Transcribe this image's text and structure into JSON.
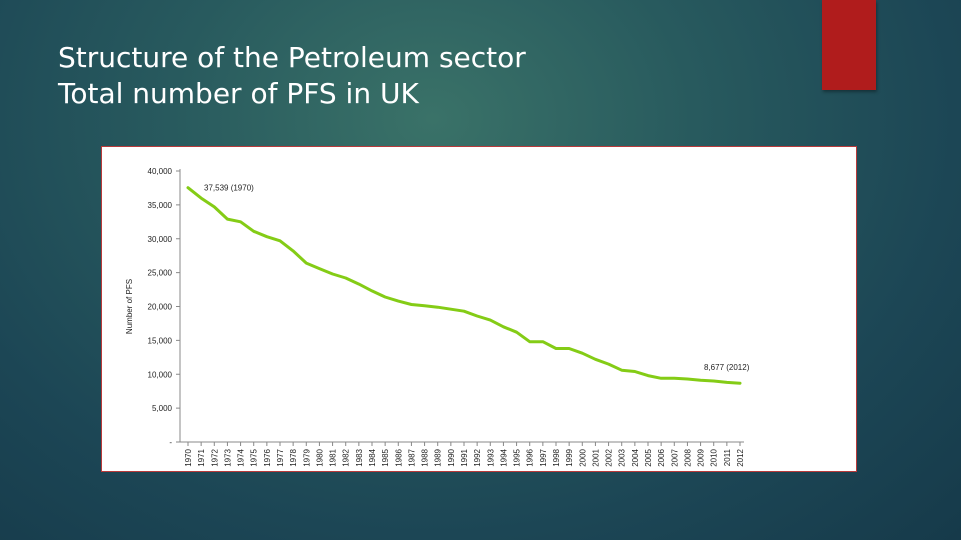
{
  "slide": {
    "title_line1": "Structure of the Petroleum sector",
    "title_line2": "Total number of PFS in UK",
    "accent_color": "#b01c1c"
  },
  "chart_data": {
    "type": "line",
    "ylabel": "Number of PFS",
    "ylim": [
      0,
      40000
    ],
    "yticks": [
      "40,000",
      "35,000",
      "30,000",
      "25,000",
      "20,000",
      "15,000",
      "10,000",
      "5,000",
      "-"
    ],
    "ytick_values": [
      40000,
      35000,
      30000,
      25000,
      20000,
      15000,
      10000,
      5000,
      0
    ],
    "grid": false,
    "line_color": "#84cc16",
    "x": [
      "1970",
      "1971",
      "1972",
      "1973",
      "1974",
      "1975",
      "1976",
      "1977",
      "1978",
      "1979",
      "1980",
      "1981",
      "1982",
      "1983",
      "1984",
      "1985",
      "1986",
      "1987",
      "1988",
      "1989",
      "1990",
      "1991",
      "1992",
      "1993",
      "1994",
      "1995",
      "1996",
      "1997",
      "1998",
      "1999",
      "2000",
      "2001",
      "2002",
      "2003",
      "2004",
      "2005",
      "2006",
      "2007",
      "2008",
      "2009",
      "2010",
      "2011",
      "2012"
    ],
    "series": [
      {
        "values": [
          37539,
          36000,
          34700,
          32900,
          32500,
          31100,
          30300,
          29700,
          28200,
          26400,
          25600,
          24800,
          24200,
          23300,
          22300,
          21400,
          20800,
          20300,
          20100,
          19900,
          19600,
          19300,
          18600,
          18000,
          17000,
          16200,
          14800,
          14800,
          13800,
          13800,
          13100,
          12200,
          11500,
          10600,
          10400,
          9800,
          9400,
          9400,
          9300,
          9100,
          9000,
          8800,
          8677
        ]
      }
    ],
    "annotations": [
      {
        "text": "37,539 (1970)",
        "x": "1970",
        "y": 37539
      },
      {
        "text": "8,677 (2012)",
        "x": "2012",
        "y": 8677
      }
    ]
  }
}
